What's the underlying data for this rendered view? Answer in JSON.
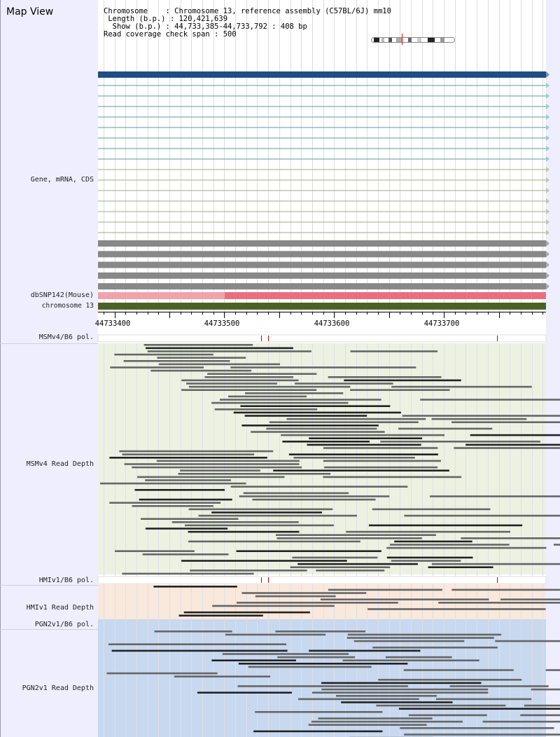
{
  "app": {
    "title": "Map View"
  },
  "info": {
    "chromosome_key": "Chromosome",
    "chromosome_value": "Chromosome 13, reference assembly (C57BL/6J) mm10",
    "length_key": "Length (b.p.)",
    "length_value": "120,421,639",
    "show_key": "Show (b.p.)",
    "show_value": "44,733,385-44,733,792 : 408 bp",
    "coverage_key": "Read coverage check span",
    "coverage_value": "500"
  },
  "tracks": {
    "gene": "Gene, mRNA, CDS",
    "dbsnp": "dbSNP142(Mouse)",
    "chromosome": "chromosome 13",
    "msmv4_pol": "MSMv4/B6 pol.",
    "msmv4_depth": "MSMv4 Read Depth",
    "hmiv1_pol": "HMIv1/B6 pol.",
    "hmiv1_depth": "HMIv1 Read Depth",
    "pgn2v1_pol": "PGN2v1/B6 pol.",
    "pgn2v1_depth": "PGN2v1 Read Depth"
  },
  "axis": {
    "view_start": 44733385,
    "view_end": 44733792,
    "ticks": [
      "44733400",
      "44733500",
      "44733600",
      "44733700"
    ]
  },
  "colors": {
    "gene_main": "#1f4e85",
    "mrna_teal": "#5a99a8",
    "mrna_olive": "#9fae7c",
    "cds_gray": "#888888",
    "dbsnp_light": "#f2a2ac",
    "dbsnp": "#ea6f7e",
    "chromosome": "#4b6226",
    "msm_bg": "#edf1e2",
    "hmi_bg": "#f9e8dc",
    "pgn_bg": "#c7d8ef",
    "snp_mark": "#cc0000"
  }
}
